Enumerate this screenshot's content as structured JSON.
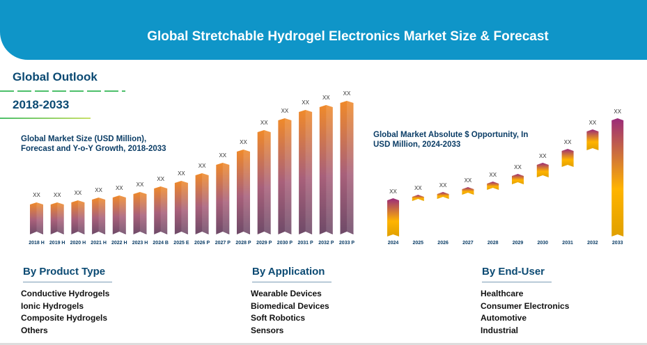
{
  "header": {
    "title": "Global Stretchable Hydrogel Electronics Market Size & Forecast"
  },
  "outlook": {
    "label": "Global Outlook",
    "period": "2018-2033"
  },
  "chart_data": [
    {
      "type": "bar",
      "title": "Global Market Size (USD Million), Forecast and Y-o-Y Growth, 2018-2033",
      "categories": [
        "2018 H",
        "2019 H",
        "2020 H",
        "2021 H",
        "2022 H",
        "2023 H",
        "2024 B",
        "2025 E",
        "2026 P",
        "2027 P",
        "2028 P",
        "2029 P",
        "2030 P",
        "2031 P",
        "2032 P",
        "2033 P"
      ],
      "values": [
        46,
        46,
        49,
        53,
        56,
        61,
        69,
        77,
        88,
        103,
        122,
        150,
        167,
        179,
        186,
        192
      ],
      "data_labels": [
        "XX",
        "XX",
        "XX",
        "XX",
        "XX",
        "XX",
        "XX",
        "XX",
        "XX",
        "XX",
        "XX",
        "XX",
        "XX",
        "XX",
        "XX",
        "XX"
      ],
      "ylim": [
        0,
        200
      ],
      "grid": false,
      "colors": [
        "#f08a2a",
        "#7a4a6a"
      ]
    },
    {
      "type": "waterfall",
      "title": "Global Market Absolute $ Opportunity, In USD Million, 2024-2033",
      "categories": [
        "2024",
        "2025",
        "2026",
        "2027",
        "2028",
        "2029",
        "2030",
        "2031",
        "2032",
        "2033"
      ],
      "ranges": [
        [
          0,
          55
        ],
        [
          51,
          60
        ],
        [
          54,
          64
        ],
        [
          60,
          71
        ],
        [
          67,
          79
        ],
        [
          75,
          90
        ],
        [
          85,
          106
        ],
        [
          100,
          126
        ],
        [
          124,
          154
        ],
        [
          0,
          170
        ]
      ],
      "data_labels": [
        "XX",
        "XX",
        "XX",
        "XX",
        "XX",
        "XX",
        "XX",
        "XX",
        "XX",
        "XX"
      ],
      "ylim": [
        0,
        175
      ],
      "grid": false,
      "colors": [
        "#9a2a7a",
        "#ffb400"
      ]
    }
  ],
  "sections": [
    {
      "title": "By Product Type",
      "items": [
        "Conductive Hydrogels",
        "Ionic Hydrogels",
        "Composite Hydrogels",
        "Others"
      ]
    },
    {
      "title": "By Application",
      "items": [
        "Wearable Devices",
        "Biomedical Devices",
        "Soft Robotics",
        "Sensors"
      ]
    },
    {
      "title": "By End-User",
      "items": [
        "Healthcare",
        "Consumer Electronics",
        "Automotive",
        "Industrial"
      ]
    }
  ]
}
